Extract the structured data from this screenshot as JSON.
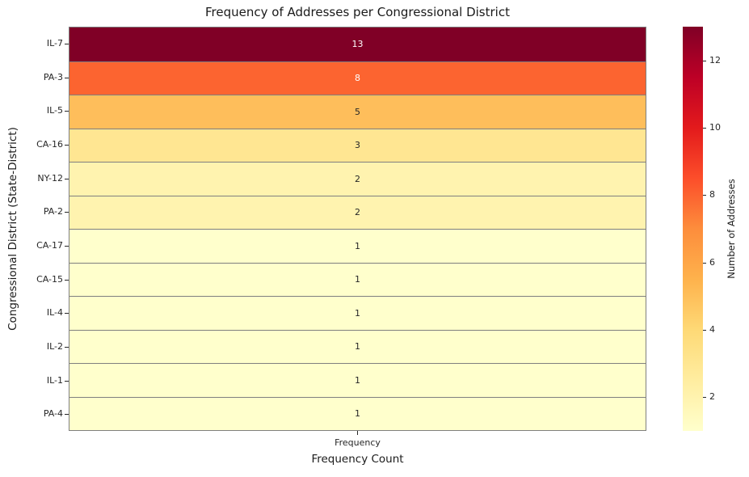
{
  "figure": {
    "title": "Frequency of Addresses per Congressional District",
    "xlabel": "Frequency Count",
    "ylabel": "Congressional District (State-District)",
    "x_tick_label": "Frequency"
  },
  "colorbar": {
    "label": "Number of Addresses",
    "ticks": [
      12,
      10,
      8,
      6,
      4,
      2
    ],
    "vmin": 1,
    "vmax": 13,
    "gradient_stops_low_to_high": [
      "#ffffcc",
      "#ffeda0",
      "#fed976",
      "#feb24c",
      "#fd8d3c",
      "#fc4e2a",
      "#e31a1c",
      "#bd0026",
      "#800026"
    ]
  },
  "chart_data": {
    "type": "heatmap",
    "title": "Frequency of Addresses per Congressional District",
    "xlabel": "Frequency Count",
    "ylabel": "Congressional District (State-District)",
    "columns": [
      "Frequency"
    ],
    "rows": [
      "IL-7",
      "PA-3",
      "IL-5",
      "CA-16",
      "NY-12",
      "PA-2",
      "CA-17",
      "CA-15",
      "IL-4",
      "IL-2",
      "IL-1",
      "PA-4"
    ],
    "values": [
      13,
      8,
      5,
      3,
      2,
      2,
      1,
      1,
      1,
      1,
      1,
      1
    ],
    "cell_colors": [
      "#800026",
      "#fc6430",
      "#febe5b",
      "#ffe692",
      "#fff3af",
      "#fff3af",
      "#ffffcc",
      "#ffffcc",
      "#ffffcc",
      "#ffffcc",
      "#ffffcc",
      "#ffffcc"
    ],
    "text_colors": [
      "#ffffff",
      "#ffffff",
      "#262626",
      "#262626",
      "#262626",
      "#262626",
      "#262626",
      "#262626",
      "#262626",
      "#262626",
      "#262626",
      "#262626"
    ],
    "colormap": "YlOrRd",
    "vmin": 1,
    "vmax": 13,
    "annotated": true,
    "grid_line_color": "#7f7f7f",
    "legend_position": "right-colorbar"
  }
}
